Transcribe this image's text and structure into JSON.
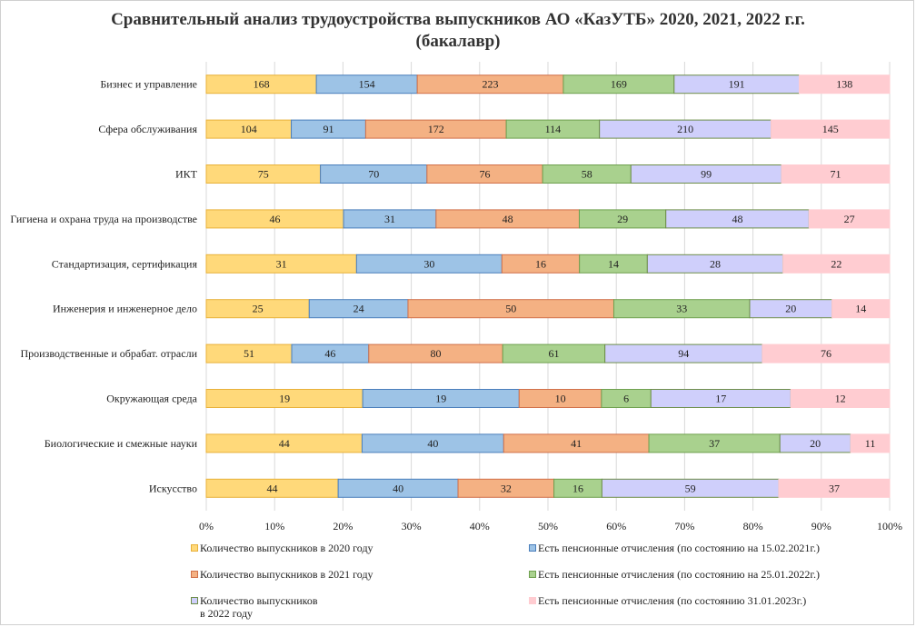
{
  "chart_data": {
    "type": "bar",
    "orientation": "horizontal",
    "stacking": "percent",
    "title": "Сравнительный анализ трудоустройства выпускников АО «КазУТБ» 2020, 2021, 2022 г.г.",
    "subtitle": "(бакалавр)",
    "categories": [
      "Бизнес и управление",
      "Сфера обслуживания",
      "ИКТ",
      "Гигиена  и охрана труда на производстве",
      "Стандартизация,  сертификация",
      "Инженерия и инженерное  дело",
      "Производственные и обрабат. отрасли",
      "Окружающая среда",
      "Биологические  и смежные  науки",
      "Искусство"
    ],
    "series": [
      {
        "name": "Количество выпускников в 2020 году",
        "color": "#FFD97A",
        "stroke": "#E8B13A",
        "values": [
          168,
          104,
          75,
          46,
          31,
          25,
          51,
          19,
          44,
          44
        ]
      },
      {
        "name": "Есть пенсионные  отчисления (по состоянию на 15.02.2021г.)",
        "color": "#9DC3E6",
        "stroke": "#4A7EBB",
        "values": [
          154,
          91,
          70,
          31,
          30,
          24,
          46,
          19,
          40,
          40
        ]
      },
      {
        "name": "Количество выпускников в 2021 году",
        "color": "#F4B183",
        "stroke": "#D0704A",
        "values": [
          223,
          172,
          76,
          48,
          16,
          50,
          80,
          10,
          41,
          32
        ]
      },
      {
        "name": "Есть пенсионные  отчисления (по состоянию на 25.01.2022г.)",
        "color": "#A9D18E",
        "stroke": "#6FA04F",
        "values": [
          169,
          114,
          58,
          29,
          14,
          33,
          61,
          6,
          37,
          16
        ]
      },
      {
        "name": "Количество выпускников\nв 2022 году",
        "color": "#CFCFFB",
        "stroke": "#6E8E4A",
        "values": [
          191,
          210,
          99,
          48,
          28,
          20,
          94,
          17,
          20,
          59
        ]
      },
      {
        "name": "Есть пенсионные  отчисления (по состоянию 31.01.2023г.)",
        "color": "#FFCCD1",
        "stroke": "#FFCCD1",
        "values": [
          138,
          145,
          71,
          27,
          22,
          14,
          76,
          12,
          11,
          37
        ]
      }
    ],
    "x_ticks": [
      "0%",
      "10%",
      "20%",
      "30%",
      "40%",
      "50%",
      "60%",
      "70%",
      "80%",
      "90%",
      "100%"
    ],
    "xlim": [
      0,
      100
    ],
    "grid": true,
    "legend_position": "bottom"
  }
}
